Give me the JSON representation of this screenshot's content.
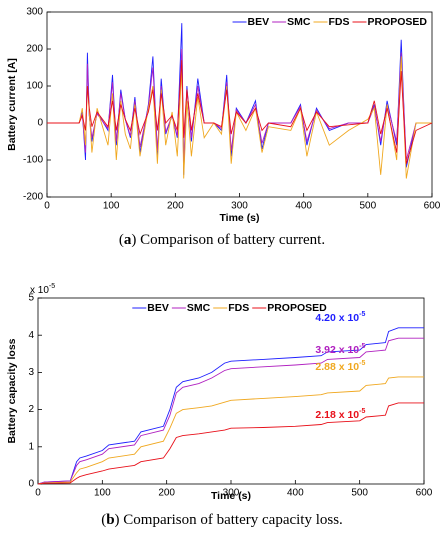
{
  "chart_data": [
    {
      "type": "line",
      "ylabel": "Battery current [A]",
      "xlabel": "Time (s)",
      "caption": [
        "(",
        "a",
        ") Comparison of battery current."
      ],
      "xlim": [
        0,
        600
      ],
      "xticks": [
        0,
        100,
        200,
        300,
        400,
        500,
        600
      ],
      "ylim": [
        -200,
        300
      ],
      "yticks": [
        -200,
        -100,
        0,
        100,
        200,
        300
      ],
      "legend": "top-right",
      "x": [
        0,
        50,
        55,
        60,
        63,
        66,
        70,
        78,
        95,
        102,
        108,
        115,
        122,
        130,
        137,
        145,
        158,
        165,
        172,
        178,
        185,
        195,
        203,
        210,
        213,
        218,
        225,
        235,
        245,
        260,
        272,
        280,
        287,
        295,
        310,
        325,
        335,
        345,
        380,
        395,
        405,
        420,
        440,
        470,
        500,
        510,
        520,
        530,
        545,
        552,
        560,
        575,
        600
      ],
      "series": [
        {
          "name": "BEV",
          "color": "#1f1fff",
          "values": [
            0,
            0,
            30,
            -100,
            190,
            20,
            -50,
            30,
            -20,
            130,
            -60,
            90,
            10,
            -40,
            70,
            -80,
            50,
            180,
            -90,
            120,
            -30,
            20,
            -40,
            270,
            -140,
            100,
            -50,
            120,
            0,
            0,
            -20,
            130,
            -90,
            40,
            0,
            60,
            -70,
            0,
            0,
            50,
            -60,
            40,
            -20,
            0,
            0,
            50,
            -60,
            60,
            -60,
            225,
            -120,
            0,
            0
          ]
        },
        {
          "name": "SMC",
          "color": "#b020c0",
          "values": [
            0,
            0,
            25,
            -80,
            160,
            20,
            -40,
            25,
            -15,
            110,
            -50,
            80,
            10,
            -35,
            60,
            -65,
            45,
            150,
            -75,
            100,
            -25,
            20,
            -35,
            200,
            -110,
            90,
            -40,
            100,
            0,
            0,
            -15,
            110,
            -75,
            35,
            0,
            50,
            -55,
            0,
            0,
            45,
            -50,
            35,
            -15,
            0,
            0,
            45,
            -50,
            50,
            -50,
            190,
            -100,
            0,
            0
          ]
        },
        {
          "name": "FDS",
          "color": "#f0a820",
          "values": [
            0,
            0,
            40,
            -60,
            100,
            30,
            -80,
            40,
            -60,
            80,
            -100,
            60,
            -30,
            -70,
            50,
            -90,
            40,
            100,
            -110,
            90,
            -60,
            30,
            -90,
            150,
            -150,
            60,
            -90,
            70,
            -40,
            0,
            -30,
            100,
            -110,
            30,
            -20,
            40,
            -80,
            -10,
            -20,
            40,
            -90,
            30,
            -60,
            -20,
            10,
            40,
            -140,
            50,
            -100,
            180,
            -150,
            0,
            0
          ]
        },
        {
          "name": "PROPOSED",
          "color": "#e8101a",
          "values": [
            0,
            0,
            20,
            -20,
            100,
            40,
            -10,
            30,
            -10,
            60,
            -20,
            50,
            10,
            -20,
            40,
            -30,
            30,
            90,
            -20,
            80,
            0,
            20,
            -20,
            170,
            -40,
            90,
            -20,
            80,
            0,
            0,
            -10,
            90,
            -30,
            30,
            0,
            40,
            -20,
            0,
            -10,
            40,
            -20,
            30,
            -10,
            -5,
            0,
            60,
            -30,
            40,
            -80,
            140,
            -110,
            -20,
            0
          ]
        }
      ]
    },
    {
      "type": "line",
      "ylabel": "Battery capacity loss",
      "xlabel": "Time (s)",
      "caption": [
        "(",
        "b",
        ") Comparison of battery capacity loss."
      ],
      "multiplier": {
        "text": "x 10",
        "sup": "-5"
      },
      "xlim": [
        0,
        600
      ],
      "xticks": [
        0,
        100,
        200,
        300,
        400,
        500,
        600
      ],
      "ylim": [
        0,
        5
      ],
      "yticks": [
        0,
        1,
        2,
        3,
        4,
        5
      ],
      "legend": "top-center",
      "x": [
        0,
        10,
        50,
        60,
        65,
        75,
        100,
        110,
        150,
        160,
        195,
        205,
        215,
        225,
        250,
        270,
        290,
        300,
        350,
        400,
        440,
        450,
        500,
        510,
        540,
        545,
        560,
        600
      ],
      "series": [
        {
          "name": "BEV",
          "color": "#1f1fff",
          "values": [
            0,
            0.05,
            0.08,
            0.6,
            0.7,
            0.75,
            0.9,
            1.05,
            1.15,
            1.4,
            1.55,
            2.0,
            2.6,
            2.75,
            2.85,
            3.0,
            3.25,
            3.3,
            3.35,
            3.4,
            3.45,
            3.55,
            3.6,
            3.75,
            3.8,
            4.1,
            4.2,
            4.2
          ]
        },
        {
          "name": "SMC",
          "color": "#b020c0",
          "values": [
            0,
            0.05,
            0.08,
            0.5,
            0.6,
            0.65,
            0.8,
            0.95,
            1.05,
            1.3,
            1.45,
            1.85,
            2.45,
            2.6,
            2.7,
            2.85,
            3.05,
            3.1,
            3.15,
            3.2,
            3.25,
            3.35,
            3.4,
            3.55,
            3.6,
            3.85,
            3.92,
            3.92
          ]
        },
        {
          "name": "FDS",
          "color": "#f0a820",
          "values": [
            0,
            0.03,
            0.05,
            0.3,
            0.4,
            0.45,
            0.6,
            0.7,
            0.8,
            1.0,
            1.15,
            1.5,
            1.9,
            2.0,
            2.05,
            2.1,
            2.2,
            2.25,
            2.3,
            2.35,
            2.4,
            2.45,
            2.5,
            2.65,
            2.7,
            2.85,
            2.88,
            2.88
          ]
        },
        {
          "name": "PROPOSED",
          "color": "#e8101a",
          "values": [
            0,
            0.02,
            0.03,
            0.15,
            0.2,
            0.25,
            0.35,
            0.4,
            0.5,
            0.6,
            0.7,
            0.95,
            1.25,
            1.3,
            1.35,
            1.4,
            1.45,
            1.5,
            1.52,
            1.55,
            1.6,
            1.65,
            1.7,
            1.8,
            1.85,
            2.1,
            2.18,
            2.18
          ]
        }
      ],
      "annotations": [
        {
          "text": "4.20 x 10",
          "sup": "-5",
          "color": "#1f1fff"
        },
        {
          "text": "3.92 x 10",
          "sup": "-5",
          "color": "#b020c0"
        },
        {
          "text": "2.88 x 10",
          "sup": "-5",
          "color": "#f0a820"
        },
        {
          "text": "2.18 x 10",
          "sup": "-5",
          "color": "#e8101a"
        }
      ]
    }
  ]
}
